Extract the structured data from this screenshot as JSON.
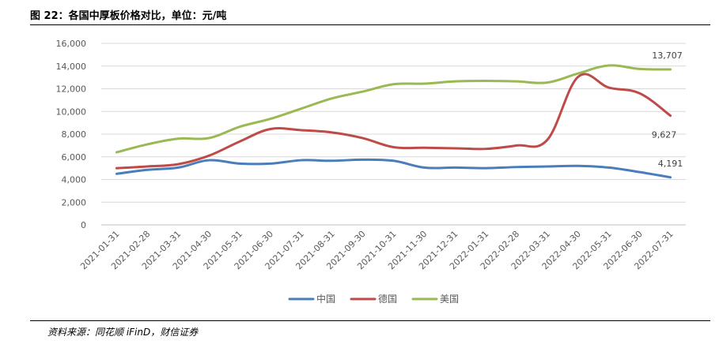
{
  "title": "图 22：各国中厚板价格对比，单位：元/吨",
  "source": "资料来源：同花顺 iFinD，财信证券",
  "colors": {
    "中国": "#4a7ebb",
    "德国": "#be4b48",
    "美国": "#98b954"
  },
  "chart_data": {
    "type": "line",
    "ylim": [
      0,
      16000
    ],
    "yticks": [
      "0",
      "2,000",
      "4,000",
      "6,000",
      "8,000",
      "10,000",
      "12,000",
      "14,000",
      "16,000"
    ],
    "categories": [
      "2021-01-31",
      "2021-02-28",
      "2021-03-31",
      "2021-04-30",
      "2021-05-31",
      "2021-06-30",
      "2021-07-31",
      "2021-08-31",
      "2021-09-30",
      "2021-10-31",
      "2021-11-30",
      "2021-12-31",
      "2022-01-31",
      "2022-02-28",
      "2022-03-31",
      "2022-04-30",
      "2022-05-31",
      "2022-06-30",
      "2022-07-31"
    ],
    "series": [
      {
        "name": "中国",
        "values": [
          4500,
          4850,
          5050,
          5700,
          5400,
          5400,
          5700,
          5650,
          5750,
          5650,
          5050,
          5050,
          5000,
          5100,
          5150,
          5200,
          5050,
          4650,
          4191
        ]
      },
      {
        "name": "德国",
        "values": [
          5000,
          5150,
          5350,
          6100,
          7350,
          8450,
          8350,
          8150,
          7650,
          6850,
          6800,
          6750,
          6700,
          7000,
          7500,
          13050,
          12100,
          11600,
          9627
        ]
      },
      {
        "name": "美国",
        "values": [
          6400,
          7100,
          7600,
          7650,
          8650,
          9350,
          10250,
          11150,
          11750,
          12400,
          12450,
          12650,
          12700,
          12650,
          12550,
          13350,
          14050,
          13750,
          13707
        ]
      }
    ],
    "end_labels": [
      "4,191",
      "9,627",
      "13,707"
    ],
    "legend_position": "bottom"
  }
}
